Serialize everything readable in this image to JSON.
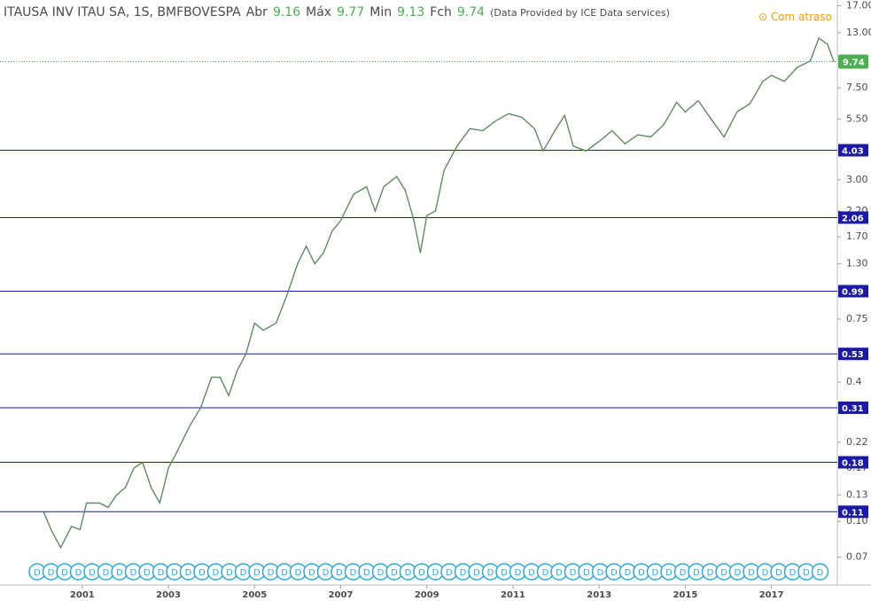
{
  "header": {
    "title": "ITAUSA INV ITAU SA, 1S, BMFBOVESPA",
    "open_label": "Abr",
    "open": 9.16,
    "high_label": "Máx",
    "high": 9.77,
    "low_label": "Min",
    "low": 9.13,
    "close_label": "Fch",
    "close": 9.74,
    "source": "(Data Provided by ICE Data services)",
    "delay": "Com atraso"
  },
  "chart_data": {
    "type": "line",
    "log_scale": true,
    "color": "#5f8a5f",
    "x": [
      2000.1,
      2000.3,
      2000.5,
      2000.75,
      2000.95,
      2001.1,
      2001.4,
      2001.6,
      2001.8,
      2002.0,
      2002.2,
      2002.4,
      2002.6,
      2002.8,
      2003.0,
      2003.2,
      2003.5,
      2003.75,
      2004.0,
      2004.2,
      2004.4,
      2004.6,
      2004.8,
      2005.0,
      2005.2,
      2005.5,
      2005.75,
      2006.0,
      2006.2,
      2006.4,
      2006.6,
      2006.8,
      2007.0,
      2007.3,
      2007.6,
      2007.8,
      2008.0,
      2008.3,
      2008.5,
      2008.7,
      2008.85,
      2009.0,
      2009.2,
      2009.4,
      2009.7,
      2010.0,
      2010.3,
      2010.6,
      2010.9,
      2011.2,
      2011.5,
      2011.7,
      2012.0,
      2012.2,
      2012.4,
      2012.7,
      2013.0,
      2013.3,
      2013.6,
      2013.9,
      2014.2,
      2014.5,
      2014.8,
      2015.0,
      2015.3,
      2015.6,
      2015.9,
      2016.2,
      2016.5,
      2016.8,
      2017.0,
      2017.3,
      2017.6,
      2017.9,
      2018.1,
      2018.3,
      2018.45
    ],
    "values": [
      0.11,
      0.09,
      0.077,
      0.095,
      0.092,
      0.12,
      0.12,
      0.115,
      0.13,
      0.14,
      0.17,
      0.18,
      0.14,
      0.12,
      0.17,
      0.2,
      0.26,
      0.31,
      0.42,
      0.42,
      0.35,
      0.45,
      0.53,
      0.72,
      0.67,
      0.72,
      0.95,
      1.3,
      1.55,
      1.3,
      1.45,
      1.8,
      2.0,
      2.6,
      2.8,
      2.2,
      2.8,
      3.1,
      2.7,
      2.0,
      1.45,
      2.1,
      2.2,
      3.3,
      4.2,
      5.0,
      4.9,
      5.4,
      5.8,
      5.6,
      5.0,
      4.0,
      5.0,
      5.7,
      4.2,
      4.0,
      4.4,
      4.9,
      4.3,
      4.7,
      4.6,
      5.2,
      6.5,
      5.9,
      6.6,
      5.5,
      4.6,
      5.9,
      6.4,
      8.0,
      8.5,
      8.0,
      9.2,
      9.8,
      12.3,
      11.6,
      9.74
    ],
    "xlim": [
      1999.09,
      2018.53
    ],
    "xticks": [
      2001,
      2003,
      2005,
      2007,
      2009,
      2011,
      2013,
      2015,
      2017
    ],
    "ylim": [
      0.053,
      18
    ],
    "yticks": [
      {
        "value": 17,
        "label": "17.00"
      },
      {
        "value": 13,
        "label": "13.00"
      },
      {
        "value": 7.5,
        "label": "7.50"
      },
      {
        "value": 5.5,
        "label": "5.50"
      },
      {
        "value": 3,
        "label": "3.00"
      },
      {
        "value": 2.2,
        "label": "2.20"
      },
      {
        "value": 1.7,
        "label": "1.70"
      },
      {
        "value": 1.3,
        "label": "1.30"
      },
      0.75,
      0.4,
      0.22,
      0.17,
      0.13,
      {
        "value": 0.1,
        "label": "0.10"
      },
      0.07
    ],
    "hlines": [
      4.03,
      2.06,
      0.99,
      0.53,
      0.31,
      0.18,
      0.11
    ],
    "last_price": 9.74,
    "event_marker": "D"
  }
}
